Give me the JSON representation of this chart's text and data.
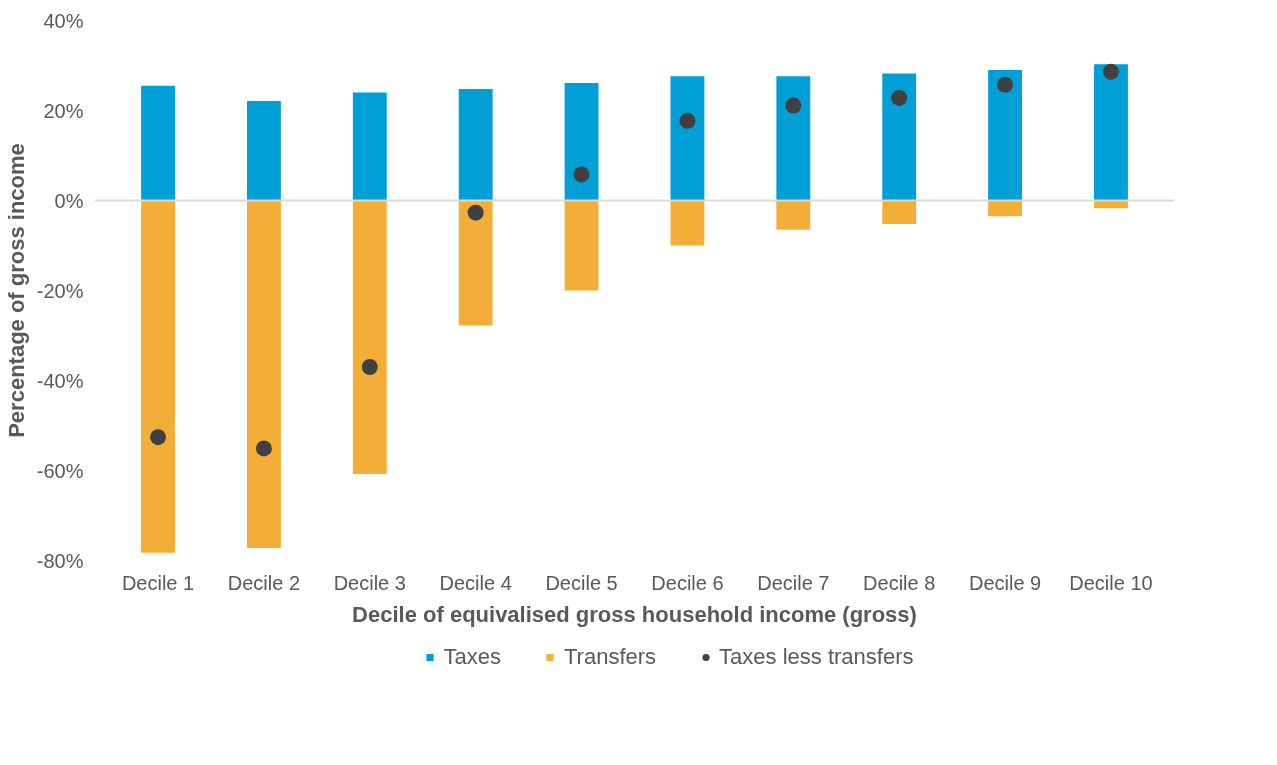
{
  "chart_data": {
    "type": "bar",
    "stacked": true,
    "xlabel": "Decile of equivalised gross household income (gross)",
    "ylabel": "Percentage of gross income",
    "categories": [
      "Decile 1",
      "Decile 2",
      "Decile 3",
      "Decile 4",
      "Decile 5",
      "Decile 6",
      "Decile 7",
      "Decile 8",
      "Decile 9",
      "Decile 10"
    ],
    "series": [
      {
        "name": "Taxes",
        "color": "#009fd6",
        "values": [
          25.5,
          22.1,
          24.0,
          24.8,
          26.1,
          27.6,
          27.6,
          28.2,
          29.0,
          30.3
        ]
      },
      {
        "name": "Transfers",
        "color": "#f2ae37",
        "values": [
          -78.3,
          -77.2,
          -60.8,
          -27.8,
          -20.0,
          -10.0,
          -6.5,
          -5.2,
          -3.5,
          -1.7
        ]
      },
      {
        "name": "Taxes less transfers",
        "type": "scatter",
        "marker": "circle",
        "color": "#404040",
        "values": [
          -52.6,
          -55.1,
          -37.0,
          -2.7,
          5.8,
          17.7,
          21.1,
          22.8,
          25.7,
          28.6
        ]
      }
    ],
    "ylim": [
      -80,
      40
    ],
    "yticks": [
      {
        "value": -80,
        "label": "-80%"
      },
      {
        "value": -60,
        "label": "-60%"
      },
      {
        "value": -40,
        "label": "-40%"
      },
      {
        "value": -20,
        "label": "-20%"
      },
      {
        "value": 0,
        "label": "0%"
      },
      {
        "value": 20,
        "label": "20%"
      },
      {
        "value": 40,
        "label": "40%"
      }
    ],
    "ref_lines": [
      {
        "axis": "y",
        "value": 0,
        "color": "#d9d9d9"
      }
    ],
    "grid": false,
    "legend": "bottom"
  }
}
